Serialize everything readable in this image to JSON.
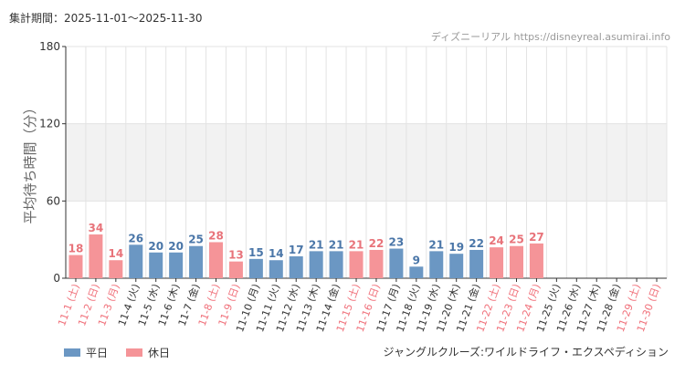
{
  "header": {
    "period_label": "集計期間：",
    "period_range": "2025-11-01〜2025-11-30",
    "source_text": "ディズニーリアル https://disneyreal.asumirai.info"
  },
  "footer": {
    "attraction": "ジャングルクルーズ:ワイルドライフ・エクスペディション"
  },
  "legend": [
    {
      "label": "平日",
      "color": "#6b97c3"
    },
    {
      "label": "休日",
      "color": "#f59498"
    }
  ],
  "colors": {
    "weekday": "#6b97c3",
    "holiday": "#f59498",
    "band": "#f2f2f2",
    "grid": "#e3e3e3",
    "axis": "#333333"
  },
  "chart_data": {
    "type": "bar",
    "ylabel": "平均待ち時間（分）",
    "ylim": [
      0,
      180
    ],
    "yticks": [
      0,
      60,
      120,
      180
    ],
    "shaded_band": [
      60,
      120
    ],
    "grid": true,
    "legend_position": "bottom-left",
    "categories": [
      "11-1 (土)",
      "11-2 (日)",
      "11-3 (月)",
      "11-4 (火)",
      "11-5 (水)",
      "11-6 (木)",
      "11-7 (金)",
      "11-8 (土)",
      "11-9 (日)",
      "11-10 (月)",
      "11-11 (火)",
      "11-12 (水)",
      "11-13 (木)",
      "11-14 (金)",
      "11-15 (土)",
      "11-16 (日)",
      "11-17 (月)",
      "11-18 (火)",
      "11-19 (水)",
      "11-20 (木)",
      "11-21 (金)",
      "11-22 (土)",
      "11-23 (日)",
      "11-24 (月)",
      "11-25 (火)",
      "11-26 (水)",
      "11-27 (木)",
      "11-28 (金)",
      "11-29 (土)",
      "11-30 (日)"
    ],
    "values": [
      18,
      34,
      14,
      26,
      20,
      20,
      25,
      28,
      13,
      15,
      14,
      17,
      21,
      21,
      21,
      22,
      23,
      9,
      21,
      19,
      22,
      24,
      25,
      27,
      null,
      null,
      null,
      null,
      null,
      null
    ],
    "day_type": [
      "holiday",
      "holiday",
      "holiday",
      "weekday",
      "weekday",
      "weekday",
      "weekday",
      "holiday",
      "holiday",
      "weekday",
      "weekday",
      "weekday",
      "weekday",
      "weekday",
      "holiday",
      "holiday",
      "weekday",
      "weekday",
      "weekday",
      "weekday",
      "weekday",
      "holiday",
      "holiday",
      "holiday",
      "weekday",
      "weekday",
      "weekday",
      "weekday",
      "holiday",
      "holiday"
    ]
  }
}
